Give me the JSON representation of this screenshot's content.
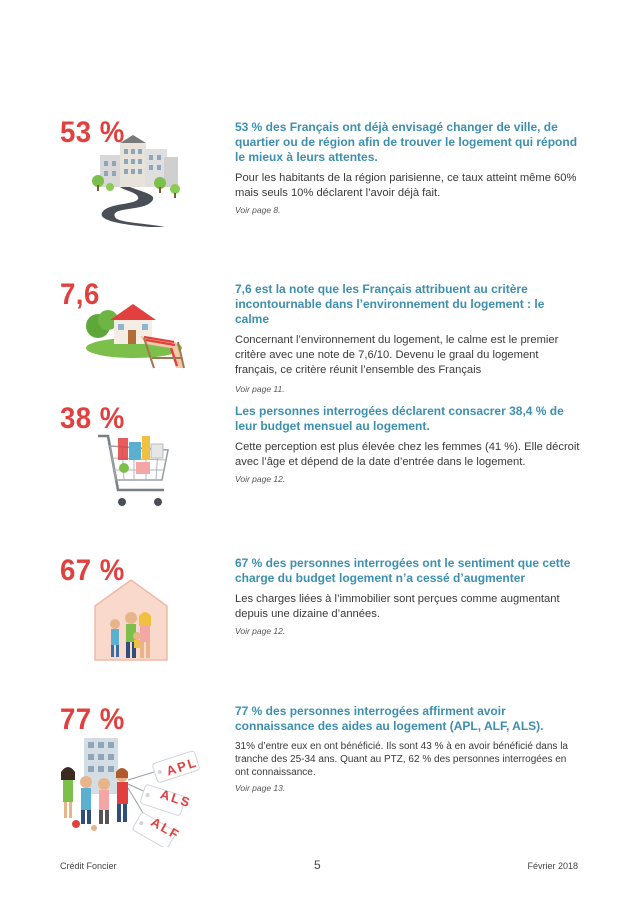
{
  "items": [
    {
      "stat": "53 %",
      "headline": "53 % des Français ont déjà envisagé changer de ville, de quartier ou de région afin de trouver le logement qui répond le mieux à leurs attentes.",
      "body": "Pour les habitants de la région parisienne, ce taux atteint même 60% mais seuls 10% déclarent l’avoir déjà fait.",
      "ref": "Voir page 8."
    },
    {
      "stat": "7,6",
      "headline": "7,6 est la note que les Français attribuent au critère incontournable dans l’environnement du logement : le calme",
      "body": "Concernant l’environnement du logement, le calme est le premier critère avec une note de 7,6/10. Devenu le graal du logement français, ce critère réunit l’ensemble des Français",
      "ref": "Voir page 11."
    },
    {
      "stat": "38 %",
      "headline": "Les personnes interrogées déclarent consacrer 38,4 % de leur budget mensuel au logement.",
      "body": "Cette perception est plus élevée chez les femmes (41 %). Elle décroit avec l’âge et dépend de la date d’entrée dans le logement.",
      "ref": "Voir page 12."
    },
    {
      "stat": "67 %",
      "headline": "67 % des personnes interrogées ont le sentiment que cette charge du budget logement n’a cessé d’augmenter",
      "body": "Les charges liées à l’immobilier sont perçues comme augmentant depuis une dizaine d’années.",
      "ref": "Voir page 12."
    },
    {
      "stat": "77 %",
      "headline": "77 % des personnes interrogées affirment avoir connaissance des aides au logement (APL, ALF, ALS).",
      "body": "31% d’entre eux en ont bénéficié. Ils sont 43 % à en avoir bénéficié dans la tranche des 25-34 ans. Quant au PTZ, 62 % des personnes interrogées en ont connaissance.",
      "ref": "Voir page 13.",
      "tags": [
        "APL",
        "ALS",
        "ALF"
      ]
    }
  ],
  "footer": {
    "left": "Crédit Foncier",
    "page": "5",
    "right": "Février 2018"
  },
  "colors": {
    "stat_red": "#e2403f",
    "headline_blue": "#3d8fb0"
  }
}
